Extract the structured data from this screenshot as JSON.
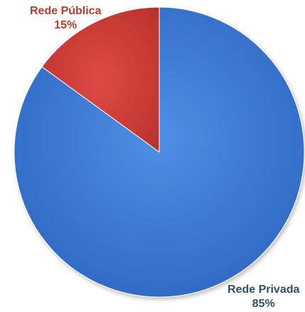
{
  "chart_data": {
    "type": "pie",
    "slices": [
      {
        "label": "Rede Pública",
        "value": 15,
        "value_label": "15%",
        "color": "#d9413c"
      },
      {
        "label": "Rede Privada",
        "value": 85,
        "value_label": "85%",
        "color": "#3e7ad6"
      }
    ],
    "label_colors": {
      "Rede Pública": "#c0392b",
      "Rede Privada": "#2f4f6f"
    }
  }
}
